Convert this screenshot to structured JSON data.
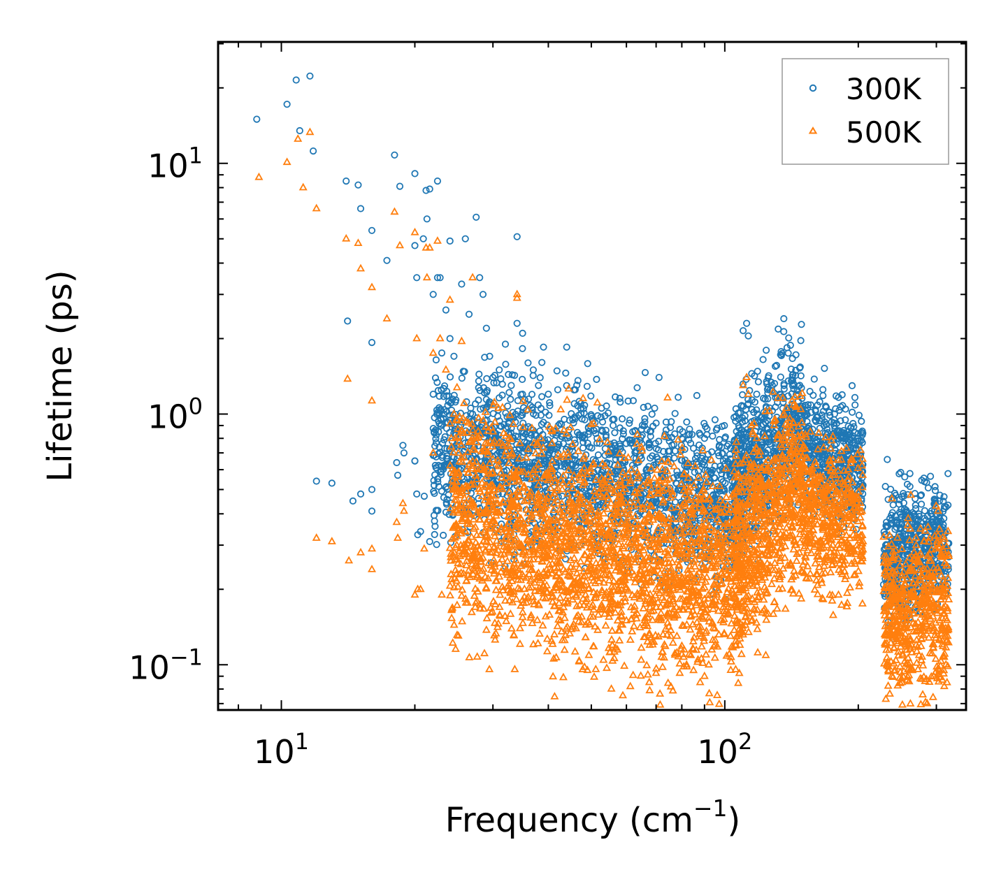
{
  "chart_data": {
    "type": "scatter",
    "xscale": "log",
    "yscale": "log",
    "xlim": [
      7.2,
      350
    ],
    "ylim": [
      0.066,
      30.5
    ],
    "xlabel": "Frequency (cm",
    "xlabel_sup": "−1",
    "xlabel_end": ")",
    "ylabel": "Lifetime (ps)",
    "x_ticks": [
      {
        "value": 10,
        "base": "10",
        "exp": "1"
      },
      {
        "value": 100,
        "base": "10",
        "exp": "2"
      }
    ],
    "y_ticks": [
      {
        "value": 0.1,
        "base": "10",
        "exp": "−1"
      },
      {
        "value": 1,
        "base": "10",
        "exp": "0"
      },
      {
        "value": 10,
        "base": "10",
        "exp": "1"
      }
    ],
    "legend_position": "top-right",
    "series": [
      {
        "name": "300K",
        "marker": "circle",
        "color": "#1f77b4",
        "points": [
          [
            8.8,
            15.0
          ],
          [
            10.3,
            17.2
          ],
          [
            10.8,
            21.5
          ],
          [
            11.0,
            13.5
          ],
          [
            11.6,
            22.3
          ],
          [
            11.8,
            11.2
          ],
          [
            12.0,
            0.54
          ],
          [
            13.0,
            0.53
          ],
          [
            14.0,
            8.5
          ],
          [
            14.1,
            2.35
          ],
          [
            14.5,
            0.45
          ],
          [
            14.9,
            8.2
          ],
          [
            15.1,
            6.6
          ],
          [
            15.1,
            0.48
          ],
          [
            16.0,
            5.4
          ],
          [
            16.0,
            1.93
          ],
          [
            16.0,
            0.5
          ],
          [
            16.0,
            0.41
          ],
          [
            17.3,
            4.1
          ],
          [
            18.0,
            10.8
          ],
          [
            18.2,
            0.64
          ],
          [
            18.3,
            0.57
          ],
          [
            18.5,
            8.1
          ],
          [
            18.8,
            0.75
          ],
          [
            18.9,
            0.7
          ],
          [
            20.0,
            9.1
          ],
          [
            20.0,
            0.65
          ],
          [
            20.0,
            0.65
          ],
          [
            20.0,
            4.7
          ],
          [
            20.2,
            3.5
          ],
          [
            20.2,
            0.48
          ],
          [
            20.3,
            0.33
          ],
          [
            20.6,
            0.34
          ],
          [
            20.9,
            5.0
          ],
          [
            21.0,
            0.47
          ],
          [
            21.2,
            7.8
          ],
          [
            21.3,
            6.0
          ],
          [
            21.6,
            7.9
          ],
          [
            21.6,
            0.31
          ],
          [
            22.0,
            3.0
          ],
          [
            22.0,
            1.2
          ],
          [
            22.5,
            8.5
          ],
          [
            22.5,
            3.5
          ],
          [
            22.8,
            3.5
          ],
          [
            23.0,
            0.62
          ],
          [
            23.5,
            2.6
          ],
          [
            24.0,
            4.9
          ],
          [
            24.0,
            2.0
          ],
          [
            24.5,
            1.7
          ],
          [
            25.0,
            0.86
          ],
          [
            25.5,
            3.3
          ],
          [
            26.0,
            5.0
          ],
          [
            26.5,
            2.5
          ],
          [
            27.0,
            1.0
          ],
          [
            27.5,
            6.1
          ],
          [
            28.0,
            3.5
          ],
          [
            28.5,
            3.0
          ],
          [
            29.0,
            2.2
          ],
          [
            29.5,
            1.7
          ],
          [
            30.0,
            1.4
          ],
          [
            31.0,
            1.5
          ],
          [
            32.0,
            1.9
          ],
          [
            33.0,
            1.3
          ],
          [
            34.0,
            5.1
          ],
          [
            34.0,
            2.3
          ],
          [
            35.0,
            2.1
          ],
          [
            36.0,
            1.6
          ],
          [
            37.0,
            1.5
          ],
          [
            38.0,
            1.3
          ],
          [
            39.0,
            1.85
          ],
          [
            40.0,
            1.2
          ],
          [
            42.0,
            1.25
          ],
          [
            44.0,
            1.85
          ],
          [
            46.0,
            1.25
          ],
          [
            48.0,
            1.05
          ],
          [
            50.0,
            0.98
          ],
          [
            53.0,
            0.93
          ],
          [
            56.0,
            0.9
          ],
          [
            58.0,
            0.88
          ],
          [
            62.0,
            0.85
          ],
          [
            66.0,
            0.93
          ],
          [
            70.0,
            0.92
          ],
          [
            75.0,
            0.78
          ],
          [
            80.0,
            0.8
          ],
          [
            85.0,
            0.73
          ],
          [
            90.0,
            0.8
          ],
          [
            95.0,
            0.62
          ],
          [
            100.0,
            0.8
          ],
          [
            103.0,
            0.73
          ],
          [
            106.0,
            0.98
          ],
          [
            110.0,
            2.15
          ],
          [
            112.0,
            2.3
          ],
          [
            113.0,
            2.05
          ],
          [
            115.0,
            1.45
          ],
          [
            118.0,
            1.2
          ],
          [
            122.0,
            1.65
          ],
          [
            125.0,
            1.15
          ],
          [
            128.0,
            1.3
          ],
          [
            130.0,
            1.55
          ],
          [
            133.0,
            1.2
          ],
          [
            136.0,
            1.3
          ],
          [
            139.0,
            1.75
          ],
          [
            142.0,
            1.4
          ],
          [
            145.0,
            1.05
          ],
          [
            150.0,
            0.85
          ],
          [
            155.0,
            0.7
          ],
          [
            160.0,
            0.6
          ],
          [
            165.0,
            0.75
          ],
          [
            170.0,
            0.87
          ],
          [
            175.0,
            0.83
          ],
          [
            180.0,
            0.8
          ],
          [
            185.0,
            0.78
          ],
          [
            190.0,
            0.85
          ],
          [
            195.0,
            0.7
          ],
          [
            200.0,
            0.6
          ],
          [
            205.0,
            0.52
          ],
          [
            230.0,
            0.22
          ],
          [
            235.0,
            0.25
          ],
          [
            240.0,
            0.3
          ],
          [
            245.0,
            0.37
          ],
          [
            250.0,
            0.35
          ],
          [
            255.0,
            0.33
          ],
          [
            260.0,
            0.3
          ],
          [
            265.0,
            0.25
          ],
          [
            270.0,
            0.22
          ],
          [
            275.0,
            0.21
          ],
          [
            280.0,
            0.28
          ],
          [
            285.0,
            0.33
          ],
          [
            290.0,
            0.36
          ],
          [
            295.0,
            0.38
          ],
          [
            300.0,
            0.37
          ],
          [
            305.0,
            0.33
          ],
          [
            310.0,
            0.28
          ],
          [
            315.0,
            0.23
          ],
          [
            318.0,
            0.21
          ]
        ]
      },
      {
        "name": "500K",
        "marker": "triangle",
        "color": "#ff7f0e",
        "points": [
          [
            8.9,
            8.8
          ],
          [
            10.3,
            10.1
          ],
          [
            10.9,
            12.5
          ],
          [
            11.2,
            8.0
          ],
          [
            11.6,
            13.3
          ],
          [
            12.0,
            6.6
          ],
          [
            12.0,
            0.32
          ],
          [
            13.0,
            0.31
          ],
          [
            14.0,
            5.0
          ],
          [
            14.1,
            1.38
          ],
          [
            14.2,
            0.26
          ],
          [
            14.9,
            4.8
          ],
          [
            15.1,
            3.8
          ],
          [
            15.1,
            0.28
          ],
          [
            16.0,
            3.2
          ],
          [
            16.0,
            1.13
          ],
          [
            16.0,
            0.29
          ],
          [
            16.0,
            0.24
          ],
          [
            17.3,
            2.4
          ],
          [
            18.0,
            6.4
          ],
          [
            18.2,
            0.37
          ],
          [
            18.3,
            0.32
          ],
          [
            18.5,
            4.7
          ],
          [
            18.8,
            0.44
          ],
          [
            18.9,
            0.41
          ],
          [
            20.0,
            5.3
          ],
          [
            20.0,
            0.19
          ],
          [
            20.2,
            2.0
          ],
          [
            20.3,
            0.2
          ],
          [
            20.6,
            0.2
          ],
          [
            21.0,
            0.29
          ],
          [
            21.2,
            4.6
          ],
          [
            21.3,
            3.5
          ],
          [
            21.6,
            4.6
          ],
          [
            22.0,
            1.75
          ],
          [
            22.0,
            0.7
          ],
          [
            22.5,
            4.9
          ],
          [
            22.8,
            2.0
          ],
          [
            23.0,
            0.19
          ],
          [
            23.5,
            1.5
          ],
          [
            24.0,
            2.85
          ],
          [
            24.5,
            1.0
          ],
          [
            25.0,
            0.5
          ],
          [
            25.5,
            1.95
          ],
          [
            26.0,
            0.3
          ],
          [
            27.0,
            3.5
          ],
          [
            27.5,
            0.6
          ],
          [
            28.0,
            0.22
          ],
          [
            30.0,
            0.85
          ],
          [
            32.0,
            0.32
          ],
          [
            34.0,
            3.0
          ],
          [
            34.0,
            2.9
          ],
          [
            35.0,
            0.28
          ],
          [
            38.0,
            0.52
          ],
          [
            40.0,
            0.23
          ],
          [
            42.0,
            0.45
          ],
          [
            45.0,
            0.2
          ],
          [
            48.0,
            0.4
          ],
          [
            50.0,
            0.17
          ],
          [
            52.0,
            0.3
          ],
          [
            55.0,
            0.16
          ],
          [
            58.0,
            0.25
          ],
          [
            60.0,
            0.15
          ],
          [
            63.0,
            0.22
          ],
          [
            66.0,
            0.15
          ],
          [
            70.0,
            0.2
          ],
          [
            75.0,
            0.16
          ],
          [
            78.0,
            0.13
          ],
          [
            80.0,
            0.11
          ],
          [
            82.0,
            0.1
          ],
          [
            85.0,
            0.095
          ],
          [
            88.0,
            0.085
          ],
          [
            90.0,
            0.09
          ],
          [
            92.0,
            0.1
          ],
          [
            95.0,
            0.12
          ],
          [
            98.0,
            0.15
          ],
          [
            100.0,
            0.16
          ],
          [
            103.0,
            0.13
          ],
          [
            106.0,
            0.12
          ],
          [
            108.0,
            0.25
          ],
          [
            110.0,
            1.3
          ],
          [
            112.0,
            1.4
          ],
          [
            113.0,
            1.2
          ],
          [
            115.0,
            0.9
          ],
          [
            118.0,
            0.8
          ],
          [
            120.0,
            0.3
          ],
          [
            125.0,
            0.3
          ],
          [
            130.0,
            0.4
          ],
          [
            133.0,
            0.6
          ],
          [
            136.0,
            1.0
          ],
          [
            139.0,
            0.9
          ],
          [
            142.0,
            0.5
          ],
          [
            145.0,
            0.3
          ],
          [
            150.0,
            0.25
          ],
          [
            155.0,
            0.22
          ],
          [
            160.0,
            0.3
          ],
          [
            165.0,
            0.45
          ],
          [
            170.0,
            0.5
          ],
          [
            175.0,
            0.4
          ],
          [
            180.0,
            0.3
          ],
          [
            185.0,
            0.25
          ],
          [
            190.0,
            0.3
          ],
          [
            195.0,
            0.35
          ],
          [
            200.0,
            0.32
          ],
          [
            205.0,
            0.31
          ],
          [
            230.0,
            0.12
          ],
          [
            235.0,
            0.13
          ],
          [
            240.0,
            0.17
          ],
          [
            245.0,
            0.2
          ],
          [
            250.0,
            0.19
          ],
          [
            255.0,
            0.14
          ],
          [
            260.0,
            0.12
          ],
          [
            265.0,
            0.095
          ],
          [
            270.0,
            0.12
          ],
          [
            275.0,
            0.14
          ],
          [
            280.0,
            0.16
          ],
          [
            285.0,
            0.19
          ],
          [
            290.0,
            0.21
          ],
          [
            295.0,
            0.2
          ],
          [
            300.0,
            0.17
          ],
          [
            305.0,
            0.15
          ],
          [
            310.0,
            0.14
          ],
          [
            315.0,
            0.13
          ],
          [
            318.0,
            0.13
          ]
        ]
      }
    ],
    "dense_regions": [
      {
        "series": "300K",
        "x_range": [
          22,
          110
        ],
        "y_center_start": 0.72,
        "y_center_end": 0.45,
        "log_spread": 0.35,
        "count": 1900
      },
      {
        "series": "300K",
        "x_range": [
          105,
          150
        ],
        "y_center_start": 0.55,
        "y_center_end": 1.0,
        "log_spread": 0.35,
        "count": 600
      },
      {
        "series": "300K",
        "x_range": [
          150,
          205
        ],
        "y_center_start": 0.75,
        "y_center_end": 0.62,
        "log_spread": 0.25,
        "count": 450
      },
      {
        "series": "300K",
        "x_range": [
          228,
          320
        ],
        "y_center_start": 0.28,
        "y_center_end": 0.3,
        "log_spread": 0.28,
        "count": 550
      },
      {
        "series": "500K",
        "x_range": [
          24,
          110
        ],
        "y_center_start": 0.38,
        "y_center_end": 0.22,
        "log_spread": 0.48,
        "count": 2300
      },
      {
        "series": "500K",
        "x_range": [
          105,
          150
        ],
        "y_center_start": 0.28,
        "y_center_end": 0.55,
        "log_spread": 0.45,
        "count": 700
      },
      {
        "series": "500K",
        "x_range": [
          150,
          205
        ],
        "y_center_start": 0.42,
        "y_center_end": 0.34,
        "log_spread": 0.32,
        "count": 450
      },
      {
        "series": "500K",
        "x_range": [
          228,
          320
        ],
        "y_center_start": 0.16,
        "y_center_end": 0.17,
        "log_spread": 0.38,
        "count": 550
      }
    ]
  }
}
